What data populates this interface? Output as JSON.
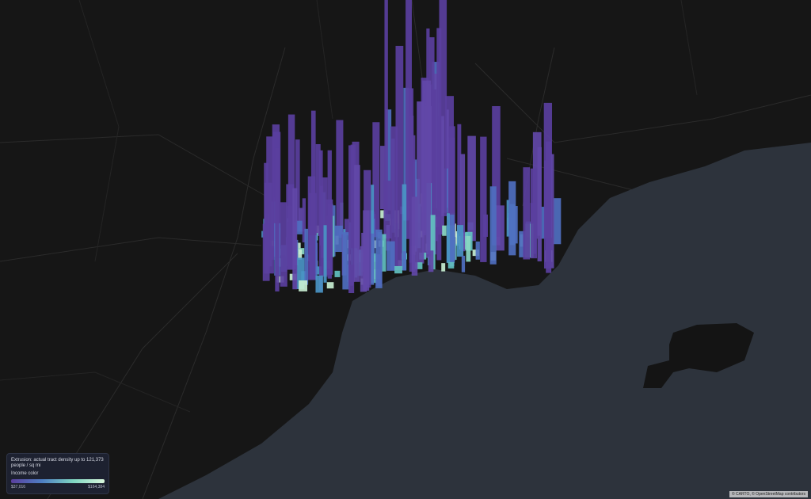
{
  "legend": {
    "extrusion": "Extrusion: actual tract density up to 121,373 people / sq mi",
    "color_title": "Income color",
    "min_label": "$37,016",
    "max_label": "$164,384"
  },
  "attribution": "© CARTO, © OpenStreetMap contributors"
}
